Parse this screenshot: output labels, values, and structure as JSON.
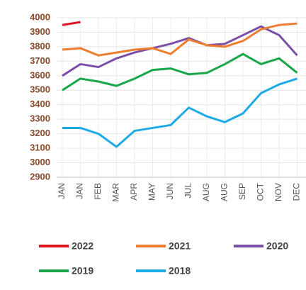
{
  "chart_data": {
    "type": "line",
    "categories": [
      "JAN",
      "JAN",
      "FEB",
      "MAR",
      "APR",
      "MAY",
      "JUN",
      "JUL",
      "AUG",
      "AUG",
      "SEP",
      "OCT",
      "NOV",
      "DEC"
    ],
    "series": [
      {
        "name": "2022",
        "color": "#e0141e",
        "values": [
          3950,
          3970,
          null,
          null,
          null,
          null,
          null,
          null,
          null,
          null,
          null,
          null,
          null,
          null
        ]
      },
      {
        "name": "2021",
        "color": "#ed7d31",
        "values": [
          3780,
          3790,
          3740,
          3760,
          3780,
          3790,
          3750,
          3850,
          3810,
          3800,
          3840,
          3920,
          3950,
          3960
        ]
      },
      {
        "name": "2020",
        "color": "#7b4fa6",
        "values": [
          3600,
          3680,
          3660,
          3720,
          3760,
          3790,
          3820,
          3860,
          3810,
          3820,
          3880,
          3940,
          3880,
          3740
        ]
      },
      {
        "name": "2019",
        "color": "#19a64a",
        "values": [
          3500,
          3580,
          3560,
          3530,
          3580,
          3640,
          3650,
          3610,
          3620,
          3680,
          3750,
          3680,
          3720,
          3620
        ]
      },
      {
        "name": "2018",
        "color": "#1eaae7",
        "values": [
          3240,
          3240,
          3200,
          3110,
          3220,
          3240,
          3260,
          3380,
          3320,
          3280,
          3340,
          3480,
          3540,
          3580
        ]
      }
    ],
    "ylim": [
      2900,
      4000
    ],
    "yticks": [
      2900,
      3000,
      3100,
      3200,
      3300,
      3400,
      3500,
      3600,
      3700,
      3800,
      3900,
      4000
    ],
    "grid": true
  }
}
